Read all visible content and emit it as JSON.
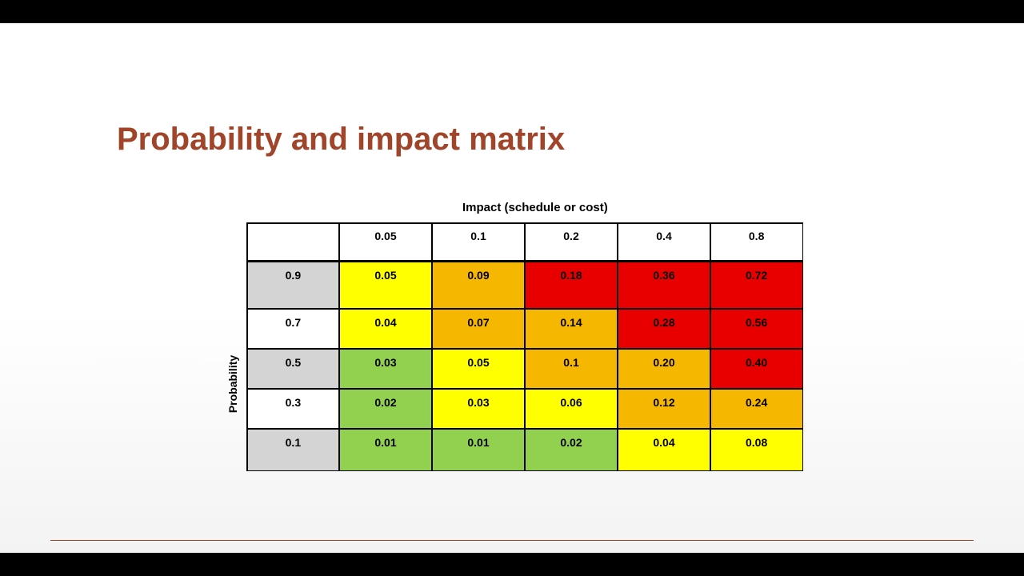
{
  "slide": {
    "title": "Probability and impact matrix",
    "impact_label": "Impact (schedule or cost)",
    "probability_label": "Probability"
  },
  "colors": {
    "title": "#a0442a",
    "green": "#92d050",
    "yellow": "#ffff00",
    "orange": "#f6b700",
    "red": "#e80000",
    "gray": "#d4d4d4"
  },
  "matrix": {
    "impacts": [
      "0.05",
      "0.1",
      "0.2",
      "0.4",
      "0.8"
    ],
    "rows": [
      {
        "probability": "0.9",
        "values": [
          "0.05",
          "0.09",
          "0.18",
          "0.36",
          "0.72"
        ],
        "colors": [
          "yellow",
          "orange",
          "red",
          "red",
          "red"
        ]
      },
      {
        "probability": "0.7",
        "values": [
          "0.04",
          "0.07",
          "0.14",
          "0.28",
          "0.56"
        ],
        "colors": [
          "yellow",
          "orange",
          "orange",
          "red",
          "red"
        ]
      },
      {
        "probability": "0.5",
        "values": [
          "0.03",
          "0.05",
          "0.1",
          "0.20",
          "0.40"
        ],
        "colors": [
          "green",
          "yellow",
          "orange",
          "orange",
          "red"
        ]
      },
      {
        "probability": "0.3",
        "values": [
          "0.02",
          "0.03",
          "0.06",
          "0.12",
          "0.24"
        ],
        "colors": [
          "green",
          "yellow",
          "yellow",
          "orange",
          "orange"
        ]
      },
      {
        "probability": "0.1",
        "values": [
          "0.01",
          "0.01",
          "0.02",
          "0.04",
          "0.08"
        ],
        "colors": [
          "green",
          "green",
          "green",
          "yellow",
          "yellow"
        ]
      }
    ]
  }
}
